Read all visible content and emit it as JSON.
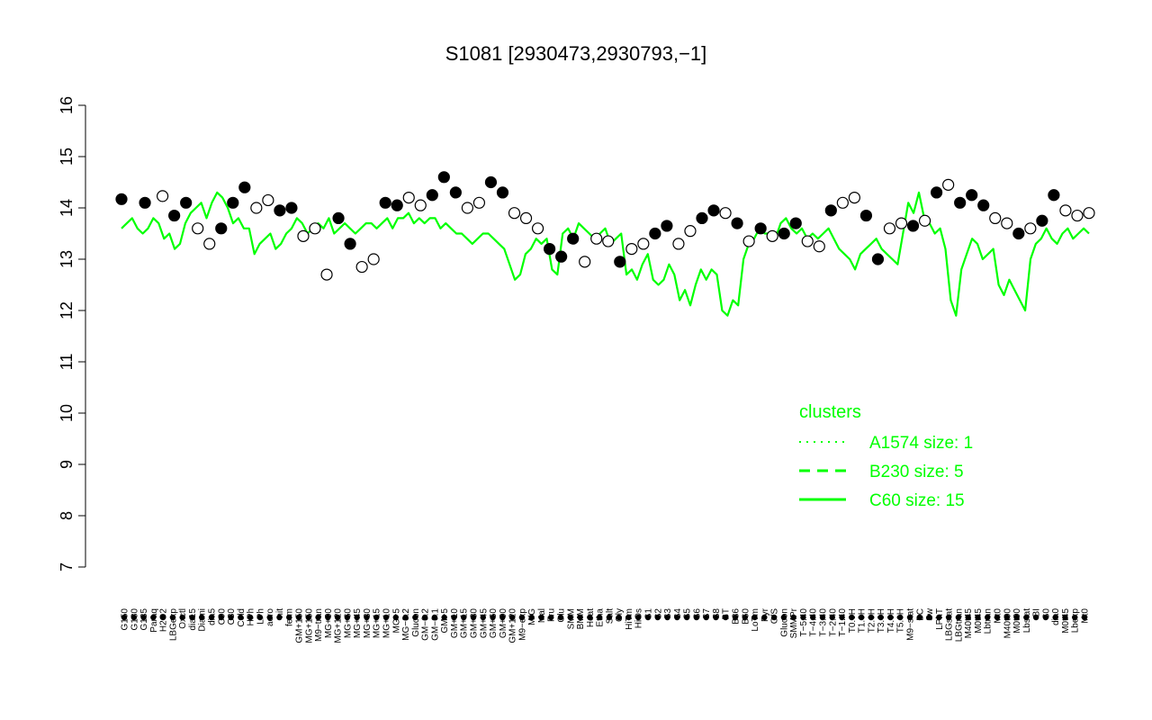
{
  "chart_data": {
    "type": "scatter",
    "title": "S1081 [2930473,2930793,−1]",
    "xlabel": "",
    "ylabel": "",
    "ylim": [
      7,
      16
    ],
    "yticks": [
      7,
      8,
      9,
      10,
      11,
      12,
      13,
      14,
      15,
      16
    ],
    "x_tick_labels": [
      "G150",
      "G180",
      "G135",
      "Paraq",
      "H2O2",
      "LBGexp",
      "Oxctl",
      "dia15",
      "Diami",
      "dia5",
      "C90",
      "C30",
      "Cold",
      "HPh",
      "LPh",
      "aero",
      "nit",
      "ferm",
      "GM+150",
      "MG+150",
      "M9−tran",
      "MG+90",
      "MG+120",
      "MG+60",
      "MG+45",
      "MG+30",
      "MG+15",
      "MG+10",
      "MG+5",
      "MG−0.2",
      "Glucon",
      "GM−0.2",
      "GM−0.1",
      "GM+5",
      "GM+10",
      "GM+15",
      "GM+30",
      "GM+45",
      "GM+60",
      "GM+90",
      "GM+120",
      "M9−exp",
      "M/G",
      "Mal",
      "Fru",
      "Glu",
      "SMM",
      "BMM",
      "Heat",
      "Etha",
      "Salt",
      "Gly",
      "HiTm",
      "HiOs",
      "S1",
      "S2",
      "S3",
      "S4",
      "S5",
      "S6",
      "S7",
      "S8",
      "BT",
      "B36",
      "B60",
      "LoTm",
      "Pyr",
      "G/S",
      "Glucon",
      "SMMPr",
      "T−5.40",
      "T−4.40",
      "T−3.40",
      "T−2.40",
      "T−1.40",
      "T0.0H",
      "T1.0H",
      "T2.0H",
      "T3.0H",
      "T4.0H",
      "T5.0H",
      "M9−stat",
      "BC",
      "Sw",
      "LPhT",
      "LBGstat",
      "LBGtran",
      "M40t45",
      "M0t45",
      "Lbtran",
      "Mt0",
      "M40t90",
      "M0t90",
      "Lbstat",
      "BI",
      "S0",
      "dia0",
      "M0t45",
      "Lbexp",
      "Mt0"
    ],
    "legend": {
      "title": "clusters",
      "position": "right",
      "entries": [
        {
          "label": "A1574 size: 1",
          "style": "dotted"
        },
        {
          "label": "B230 size: 5",
          "style": "dashed"
        },
        {
          "label": "C60 size: 15",
          "style": "solid"
        }
      ]
    },
    "series_color": "#00ff00",
    "line_values": [
      13.6,
      13.7,
      13.8,
      13.6,
      13.5,
      13.6,
      13.8,
      13.7,
      13.4,
      13.5,
      13.2,
      13.3,
      13.7,
      13.9,
      14.0,
      14.1,
      13.8,
      14.1,
      14.3,
      14.2,
      14.0,
      13.7,
      13.8,
      13.6,
      13.6,
      13.1,
      13.3,
      13.4,
      13.5,
      13.2,
      13.3,
      13.5,
      13.6,
      13.8,
      13.7,
      13.5,
      13.6,
      13.7,
      13.6,
      13.8,
      13.5,
      13.6,
      13.7,
      13.6,
      13.5,
      13.6,
      13.7,
      13.7,
      13.6,
      13.7,
      13.8,
      13.6,
      13.8,
      13.8,
      13.9,
      13.7,
      13.8,
      13.7,
      13.8,
      13.8,
      13.6,
      13.7,
      13.6,
      13.5,
      13.5,
      13.4,
      13.3,
      13.4,
      13.5,
      13.5,
      13.4,
      13.3,
      13.2,
      12.9,
      12.6,
      12.7,
      13.1,
      13.2,
      13.4,
      13.3,
      13.4,
      12.8,
      12.7,
      13.5,
      13.6,
      13.4,
      13.7,
      13.6,
      13.5,
      13.4,
      13.5,
      13.6,
      13.3,
      13.4,
      13.5,
      12.7,
      12.8,
      12.6,
      12.9,
      13.1,
      12.6,
      12.5,
      12.6,
      12.9,
      12.7,
      12.2,
      12.4,
      12.1,
      12.5,
      12.8,
      12.6,
      12.8,
      12.7,
      12.0,
      11.9,
      12.2,
      12.1,
      13.0,
      13.3,
      13.4,
      13.6,
      13.5,
      13.5,
      13.4,
      13.7,
      13.8,
      13.6,
      13.5,
      13.6,
      13.4,
      13.5,
      13.4,
      13.5,
      13.6,
      13.4,
      13.2,
      13.1,
      13.0,
      12.8,
      13.1,
      13.2,
      13.3,
      13.4,
      13.2,
      13.1,
      13.0,
      12.9,
      13.5,
      14.1,
      13.9,
      14.3,
      13.8,
      13.7,
      13.5,
      13.6,
      13.2,
      12.2,
      11.9,
      12.8,
      13.1,
      13.4,
      13.3,
      13.0,
      13.1,
      13.2,
      12.5,
      12.3,
      12.6,
      12.4,
      12.2,
      12.0,
      13.0,
      13.3,
      13.4,
      13.6,
      13.4,
      13.3,
      13.5,
      13.6,
      13.4,
      13.5,
      13.6,
      13.5
    ],
    "points": [
      {
        "x": 0,
        "y": 14.17,
        "f": 1
      },
      {
        "x": 4,
        "y": 14.1,
        "f": 1
      },
      {
        "x": 7,
        "y": 14.23,
        "f": 0
      },
      {
        "x": 9,
        "y": 13.85,
        "f": 1
      },
      {
        "x": 11,
        "y": 14.1,
        "f": 1
      },
      {
        "x": 13,
        "y": 13.6,
        "f": 0
      },
      {
        "x": 15,
        "y": 13.3,
        "f": 0
      },
      {
        "x": 17,
        "y": 13.6,
        "f": 1
      },
      {
        "x": 19,
        "y": 14.1,
        "f": 1
      },
      {
        "x": 21,
        "y": 14.4,
        "f": 1
      },
      {
        "x": 23,
        "y": 14.0,
        "f": 0
      },
      {
        "x": 25,
        "y": 14.15,
        "f": 0
      },
      {
        "x": 27,
        "y": 13.95,
        "f": 1
      },
      {
        "x": 29,
        "y": 14.0,
        "f": 1
      },
      {
        "x": 31,
        "y": 13.45,
        "f": 0
      },
      {
        "x": 33,
        "y": 13.6,
        "f": 0
      },
      {
        "x": 35,
        "y": 12.7,
        "f": 0
      },
      {
        "x": 37,
        "y": 13.8,
        "f": 1
      },
      {
        "x": 39,
        "y": 13.3,
        "f": 1
      },
      {
        "x": 41,
        "y": 12.85,
        "f": 0
      },
      {
        "x": 43,
        "y": 13.0,
        "f": 0
      },
      {
        "x": 45,
        "y": 14.1,
        "f": 1
      },
      {
        "x": 47,
        "y": 14.05,
        "f": 1
      },
      {
        "x": 49,
        "y": 14.2,
        "f": 0
      },
      {
        "x": 51,
        "y": 14.05,
        "f": 0
      },
      {
        "x": 53,
        "y": 14.25,
        "f": 1
      },
      {
        "x": 55,
        "y": 14.6,
        "f": 1
      },
      {
        "x": 57,
        "y": 14.3,
        "f": 1
      },
      {
        "x": 59,
        "y": 14.0,
        "f": 0
      },
      {
        "x": 61,
        "y": 14.1,
        "f": 0
      },
      {
        "x": 63,
        "y": 14.5,
        "f": 1
      },
      {
        "x": 65,
        "y": 14.3,
        "f": 1
      },
      {
        "x": 67,
        "y": 13.9,
        "f": 0
      },
      {
        "x": 69,
        "y": 13.8,
        "f": 0
      },
      {
        "x": 71,
        "y": 13.6,
        "f": 0
      },
      {
        "x": 73,
        "y": 13.2,
        "f": 1
      },
      {
        "x": 75,
        "y": 13.05,
        "f": 1
      },
      {
        "x": 77,
        "y": 13.4,
        "f": 1
      },
      {
        "x": 79,
        "y": 12.95,
        "f": 0
      },
      {
        "x": 81,
        "y": 13.4,
        "f": 0
      },
      {
        "x": 83,
        "y": 13.35,
        "f": 0
      },
      {
        "x": 85,
        "y": 12.95,
        "f": 1
      },
      {
        "x": 87,
        "y": 13.2,
        "f": 0
      },
      {
        "x": 89,
        "y": 13.3,
        "f": 0
      },
      {
        "x": 91,
        "y": 13.5,
        "f": 1
      },
      {
        "x": 93,
        "y": 13.65,
        "f": 1
      },
      {
        "x": 95,
        "y": 13.3,
        "f": 0
      },
      {
        "x": 97,
        "y": 13.55,
        "f": 0
      },
      {
        "x": 99,
        "y": 13.8,
        "f": 1
      },
      {
        "x": 101,
        "y": 13.95,
        "f": 1
      },
      {
        "x": 103,
        "y": 13.9,
        "f": 0
      },
      {
        "x": 105,
        "y": 13.7,
        "f": 1
      },
      {
        "x": 107,
        "y": 13.35,
        "f": 0
      },
      {
        "x": 109,
        "y": 13.6,
        "f": 1
      },
      {
        "x": 111,
        "y": 13.45,
        "f": 0
      },
      {
        "x": 113,
        "y": 13.5,
        "f": 1
      },
      {
        "x": 115,
        "y": 13.7,
        "f": 1
      },
      {
        "x": 117,
        "y": 13.35,
        "f": 0
      },
      {
        "x": 119,
        "y": 13.25,
        "f": 0
      },
      {
        "x": 121,
        "y": 13.95,
        "f": 1
      },
      {
        "x": 123,
        "y": 14.1,
        "f": 0
      },
      {
        "x": 125,
        "y": 14.2,
        "f": 0
      },
      {
        "x": 127,
        "y": 13.85,
        "f": 1
      },
      {
        "x": 129,
        "y": 13.0,
        "f": 1
      },
      {
        "x": 131,
        "y": 13.6,
        "f": 0
      },
      {
        "x": 133,
        "y": 13.7,
        "f": 0
      },
      {
        "x": 135,
        "y": 13.65,
        "f": 1
      },
      {
        "x": 137,
        "y": 13.75,
        "f": 0
      },
      {
        "x": 139,
        "y": 14.3,
        "f": 1
      },
      {
        "x": 141,
        "y": 14.45,
        "f": 0
      },
      {
        "x": 143,
        "y": 14.1,
        "f": 1
      },
      {
        "x": 145,
        "y": 14.25,
        "f": 1
      },
      {
        "x": 147,
        "y": 14.05,
        "f": 1
      },
      {
        "x": 149,
        "y": 13.8,
        "f": 0
      },
      {
        "x": 151,
        "y": 13.7,
        "f": 0
      },
      {
        "x": 153,
        "y": 13.5,
        "f": 1
      },
      {
        "x": 155,
        "y": 13.6,
        "f": 0
      },
      {
        "x": 157,
        "y": 13.75,
        "f": 1
      },
      {
        "x": 159,
        "y": 14.25,
        "f": 1
      },
      {
        "x": 161,
        "y": 13.95,
        "f": 0
      },
      {
        "x": 163,
        "y": 13.85,
        "f": 0
      },
      {
        "x": 165,
        "y": 13.9,
        "f": 0
      }
    ]
  }
}
